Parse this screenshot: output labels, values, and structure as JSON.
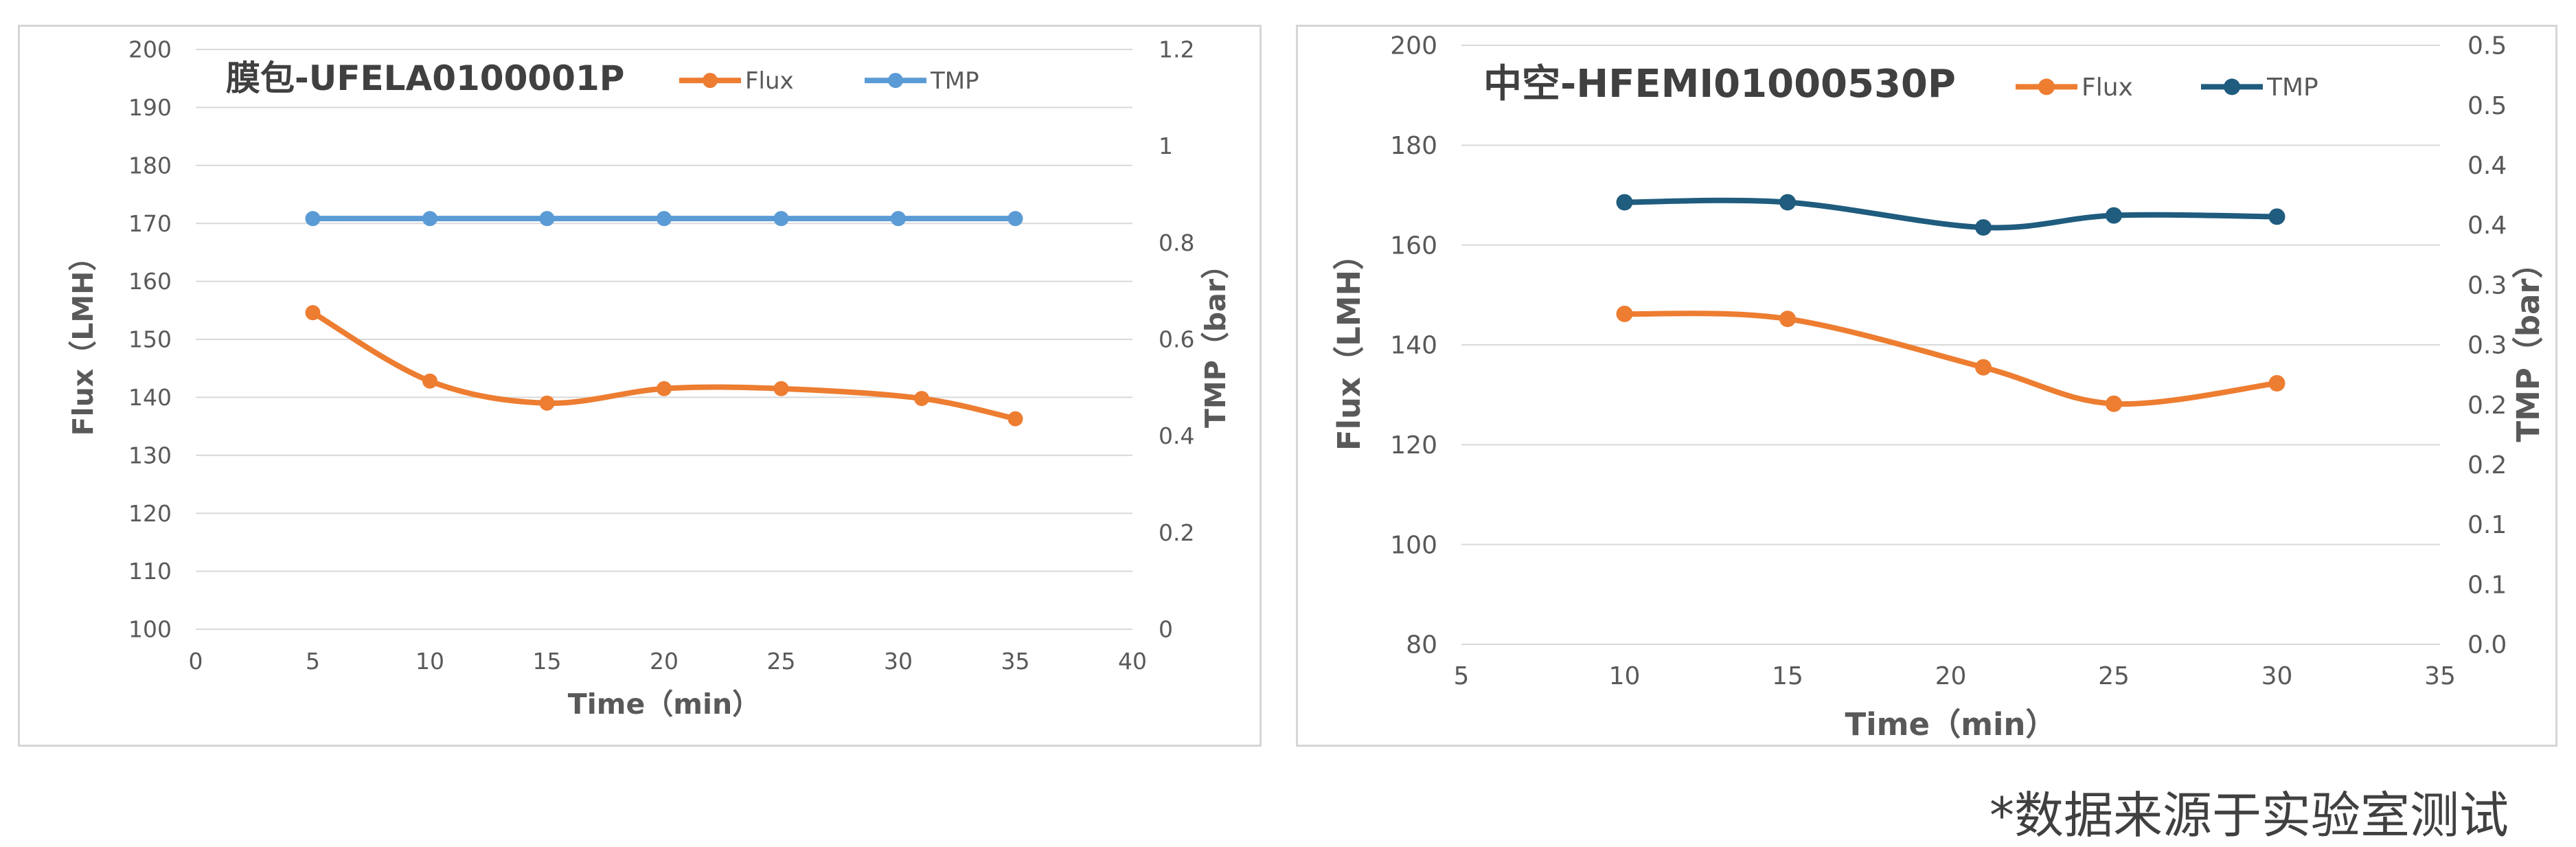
{
  "footnote": "*数据来源于实验室测试",
  "chart_data": [
    {
      "type": "line",
      "title": "膜包-UFELA0100001P",
      "xlabel": "Time（min）",
      "ylabel": "Flux（LMH）",
      "y2label": "TMP（bar）",
      "xlim": [
        0,
        40
      ],
      "xticks": [
        0,
        5,
        10,
        15,
        20,
        25,
        30,
        35,
        40
      ],
      "ylim": [
        100,
        200
      ],
      "yticks": [
        100,
        110,
        120,
        130,
        140,
        150,
        160,
        170,
        180,
        190,
        200
      ],
      "y2lim": [
        0,
        1.2
      ],
      "y2ticks": [
        "0",
        "0.2",
        "0.4",
        "0.6",
        "0.8",
        "1",
        "1.2"
      ],
      "grid": true,
      "legend_position": "top-center",
      "series": [
        {
          "name": "Flux",
          "axis": "left",
          "color": "#ED7D31",
          "smooth": true,
          "x": [
            5,
            10,
            15,
            20,
            25,
            31,
            35
          ],
          "y": [
            154.6,
            142.8,
            139.0,
            141.5,
            141.5,
            139.8,
            136.3
          ]
        },
        {
          "name": "TMP",
          "axis": "right",
          "color": "#5B9BD5",
          "smooth": false,
          "x": [
            5,
            10,
            15,
            20,
            25,
            30,
            35
          ],
          "y": [
            0.85,
            0.85,
            0.85,
            0.85,
            0.85,
            0.85,
            0.85
          ]
        }
      ]
    },
    {
      "type": "line",
      "title": "中空-HFEMI01000530P",
      "xlabel": "Time（min）",
      "ylabel": "Flux（LMH）",
      "y2label": "TMP（bar）",
      "xlim": [
        5,
        35
      ],
      "xticks": [
        5,
        10,
        15,
        20,
        25,
        30,
        35
      ],
      "ylim": [
        80,
        200
      ],
      "yticks": [
        80,
        100,
        120,
        140,
        160,
        180,
        200
      ],
      "y2lim": [
        0,
        0.5
      ],
      "y2ticks": [
        "0.0",
        "0.1",
        "0.1",
        "0.2",
        "0.2",
        "0.3",
        "0.3",
        "0.4",
        "0.4",
        "0.5",
        "0.5"
      ],
      "grid": true,
      "legend_position": "top-center",
      "series": [
        {
          "name": "Flux",
          "axis": "left",
          "color": "#ED7D31",
          "smooth": true,
          "x": [
            10,
            15,
            21,
            25,
            30
          ],
          "y": [
            146.2,
            145.2,
            135.5,
            128.2,
            132.3
          ]
        },
        {
          "name": "TMP",
          "axis": "right",
          "color": "#1F5C7E",
          "smooth": true,
          "x": [
            10,
            15,
            21,
            25,
            30
          ],
          "y": [
            0.369,
            0.369,
            0.348,
            0.358,
            0.357
          ]
        }
      ]
    }
  ]
}
